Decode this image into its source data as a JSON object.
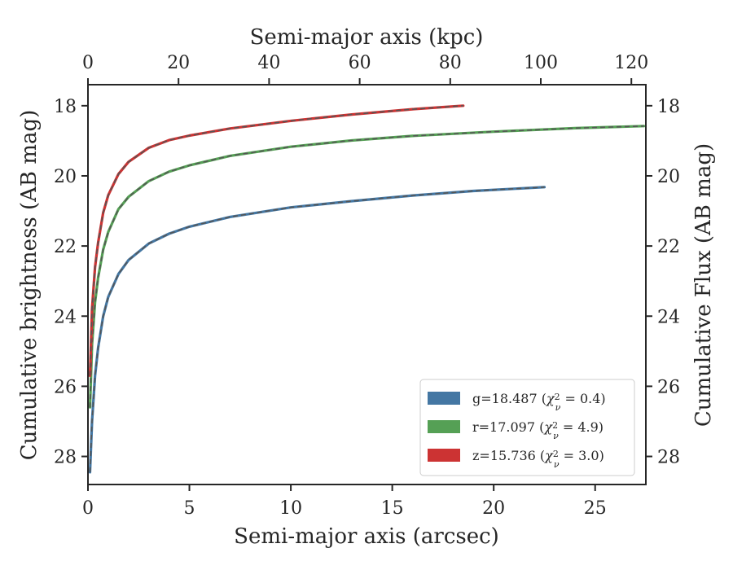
{
  "chart_data": {
    "type": "line",
    "title": "",
    "xlabel": "Semi-major axis (arcsec)",
    "ylabel": "Cumulative brightness (AB mag)",
    "x2label": "Semi-major axis (kpc)",
    "y2label": "Cumulative Flux (AB mag)",
    "xlim": [
      0,
      27.5
    ],
    "ylim": [
      28.8,
      17.4
    ],
    "y_inverted": true,
    "kpc_per_arcsec": 4.48,
    "x_ticks": [
      0,
      5,
      10,
      15,
      20,
      25
    ],
    "x_tick_labels": [
      "0",
      "5",
      "10",
      "15",
      "20",
      "25"
    ],
    "x2_ticks": [
      0,
      20,
      40,
      60,
      80,
      100,
      120
    ],
    "x2_tick_labels": [
      "0",
      "20",
      "40",
      "60",
      "80",
      "100",
      "120"
    ],
    "y_ticks": [
      18,
      20,
      22,
      24,
      26,
      28
    ],
    "y_tick_labels": [
      "18",
      "20",
      "22",
      "24",
      "26",
      "28"
    ],
    "grid": false,
    "legend_position": "bottom-right",
    "series": [
      {
        "name": "g=18.487 (χ²ν = 0.4)",
        "label_main": "g=18.487 (",
        "label_var": "χ",
        "label_sup": "2",
        "label_sub": "ν",
        "label_eq": " = 0.4)",
        "color": "#4477a3",
        "x": [
          0.1,
          0.2,
          0.35,
          0.5,
          0.75,
          1.0,
          1.5,
          2.0,
          3.0,
          4.0,
          5.0,
          7.0,
          10.0,
          13.0,
          16.0,
          19.0,
          22.5
        ],
        "y": [
          28.45,
          27.0,
          25.7,
          24.9,
          24.0,
          23.45,
          22.8,
          22.4,
          21.93,
          21.65,
          21.45,
          21.17,
          20.9,
          20.72,
          20.56,
          20.43,
          20.32
        ]
      },
      {
        "name": "r=17.097 (χ²ν = 4.9)",
        "label_main": "r=17.097 (",
        "label_var": "χ",
        "label_sup": "2",
        "label_sub": "ν",
        "label_eq": " = 4.9)",
        "color": "#55a055",
        "x": [
          0.1,
          0.2,
          0.35,
          0.5,
          0.75,
          1.0,
          1.5,
          2.0,
          3.0,
          4.0,
          5.0,
          7.0,
          10.0,
          13.0,
          16.0,
          20.0,
          24.0,
          27.4
        ],
        "y": [
          26.6,
          24.8,
          23.6,
          22.9,
          22.1,
          21.6,
          20.95,
          20.6,
          20.15,
          19.88,
          19.7,
          19.43,
          19.17,
          18.99,
          18.86,
          18.74,
          18.64,
          18.58
        ]
      },
      {
        "name": "z=15.736 (χ²ν = 3.0)",
        "label_main": "z=15.736 (",
        "label_var": "χ",
        "label_sup": "2",
        "label_sub": "ν",
        "label_eq": " = 3.0)",
        "color": "#cc3333",
        "x": [
          0.1,
          0.2,
          0.35,
          0.5,
          0.75,
          1.0,
          1.5,
          2.0,
          3.0,
          4.0,
          5.0,
          7.0,
          10.0,
          13.0,
          16.0,
          18.5
        ],
        "y": [
          25.7,
          23.8,
          22.6,
          21.9,
          21.05,
          20.55,
          19.95,
          19.6,
          19.2,
          18.98,
          18.85,
          18.65,
          18.43,
          18.25,
          18.1,
          18.0
        ]
      }
    ]
  }
}
